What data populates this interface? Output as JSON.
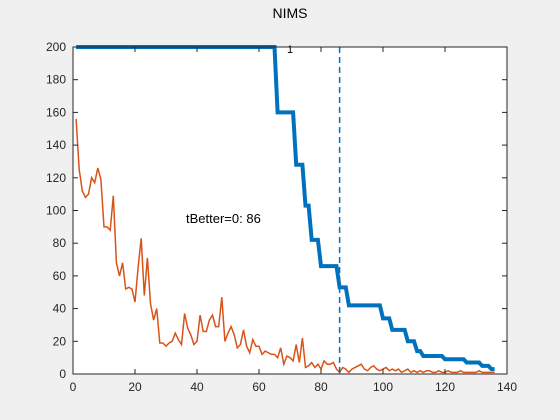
{
  "chart_data": {
    "type": "line",
    "title": "NIMS",
    "subtitle": "1",
    "xlabel": "",
    "ylabel": "",
    "xlim": [
      0,
      140
    ],
    "ylim": [
      0,
      200
    ],
    "xticks": [
      "0",
      "20",
      "40",
      "60",
      "80",
      "100",
      "120",
      "140"
    ],
    "yticks": [
      "0",
      "20",
      "40",
      "60",
      "80",
      "100",
      "120",
      "140",
      "160",
      "180",
      "200"
    ],
    "grid": false,
    "legend": "none",
    "annotation": {
      "text": "tBetter=0: 86",
      "x": 49,
      "y": 99
    },
    "vline": {
      "x": 86,
      "style": "dashed",
      "color": "#0072BD"
    },
    "series": [
      {
        "color": "#0072BD",
        "style": "step",
        "line_width": "thick",
        "points": [
          [
            1,
            200
          ],
          [
            65,
            200
          ],
          [
            66,
            160
          ],
          [
            71,
            160
          ],
          [
            72,
            128
          ],
          [
            74,
            128
          ],
          [
            75,
            103
          ],
          [
            76,
            103
          ],
          [
            77,
            82
          ],
          [
            79,
            82
          ],
          [
            80,
            66
          ],
          [
            85,
            66
          ],
          [
            86,
            53
          ],
          [
            88,
            53
          ],
          [
            89,
            42
          ],
          [
            99,
            42
          ],
          [
            100,
            34
          ],
          [
            102,
            34
          ],
          [
            103,
            27
          ],
          [
            107,
            27
          ],
          [
            108,
            20
          ],
          [
            110,
            20
          ],
          [
            111,
            14
          ],
          [
            112,
            14
          ],
          [
            113,
            11
          ],
          [
            119,
            11
          ],
          [
            120,
            9
          ],
          [
            126,
            9
          ],
          [
            127,
            7
          ],
          [
            131,
            7
          ],
          [
            132,
            5
          ],
          [
            134,
            5
          ],
          [
            135,
            3
          ],
          [
            136,
            3
          ]
        ]
      },
      {
        "color": "#D95319",
        "style": "line",
        "line_width": "thin",
        "points": [
          [
            1,
            156
          ],
          [
            2,
            125
          ],
          [
            3,
            112
          ],
          [
            4,
            108
          ],
          [
            5,
            110
          ],
          [
            6,
            120
          ],
          [
            7,
            117
          ],
          [
            8,
            126
          ],
          [
            9,
            119
          ],
          [
            10,
            90
          ],
          [
            11,
            90
          ],
          [
            12,
            88
          ],
          [
            13,
            109
          ],
          [
            14,
            68
          ],
          [
            15,
            60
          ],
          [
            16,
            68
          ],
          [
            17,
            52
          ],
          [
            18,
            53
          ],
          [
            19,
            52
          ],
          [
            20,
            44
          ],
          [
            21,
            65
          ],
          [
            22,
            83
          ],
          [
            23,
            48
          ],
          [
            24,
            71
          ],
          [
            25,
            43
          ],
          [
            26,
            33
          ],
          [
            27,
            40
          ],
          [
            28,
            19
          ],
          [
            29,
            19
          ],
          [
            30,
            17
          ],
          [
            31,
            19
          ],
          [
            32,
            20
          ],
          [
            33,
            25
          ],
          [
            34,
            21
          ],
          [
            35,
            18
          ],
          [
            36,
            37
          ],
          [
            37,
            28
          ],
          [
            38,
            24
          ],
          [
            39,
            18
          ],
          [
            40,
            20
          ],
          [
            41,
            36
          ],
          [
            42,
            26
          ],
          [
            43,
            26
          ],
          [
            44,
            33
          ],
          [
            45,
            36
          ],
          [
            46,
            29
          ],
          [
            47,
            29
          ],
          [
            48,
            47
          ],
          [
            49,
            20
          ],
          [
            50,
            25
          ],
          [
            51,
            29
          ],
          [
            52,
            24
          ],
          [
            53,
            16
          ],
          [
            54,
            18
          ],
          [
            55,
            27
          ],
          [
            56,
            17
          ],
          [
            57,
            13
          ],
          [
            58,
            21
          ],
          [
            59,
            17
          ],
          [
            60,
            17
          ],
          [
            61,
            12
          ],
          [
            62,
            14
          ],
          [
            63,
            13
          ],
          [
            64,
            12
          ],
          [
            65,
            12
          ],
          [
            66,
            10
          ],
          [
            67,
            16
          ],
          [
            68,
            6
          ],
          [
            69,
            11
          ],
          [
            70,
            10
          ],
          [
            71,
            8
          ],
          [
            72,
            18
          ],
          [
            73,
            7
          ],
          [
            74,
            22
          ],
          [
            75,
            4
          ],
          [
            76,
            5
          ],
          [
            77,
            7
          ],
          [
            78,
            4
          ],
          [
            79,
            6
          ],
          [
            80,
            3
          ],
          [
            81,
            8
          ],
          [
            82,
            6
          ],
          [
            83,
            6
          ],
          [
            84,
            7
          ],
          [
            85,
            3
          ],
          [
            86,
            1
          ],
          [
            87,
            4
          ],
          [
            88,
            3
          ],
          [
            89,
            1
          ],
          [
            90,
            3
          ],
          [
            91,
            4
          ],
          [
            92,
            5
          ],
          [
            93,
            6
          ],
          [
            94,
            3
          ],
          [
            95,
            2
          ],
          [
            96,
            4
          ],
          [
            97,
            5
          ],
          [
            98,
            3
          ],
          [
            99,
            2
          ],
          [
            100,
            3
          ],
          [
            101,
            4
          ],
          [
            102,
            2
          ],
          [
            103,
            3
          ],
          [
            104,
            2
          ],
          [
            105,
            3
          ],
          [
            106,
            1
          ],
          [
            107,
            2
          ],
          [
            108,
            3
          ],
          [
            109,
            1
          ],
          [
            110,
            2
          ],
          [
            111,
            1
          ],
          [
            112,
            2
          ],
          [
            113,
            1
          ],
          [
            114,
            2
          ],
          [
            115,
            2
          ],
          [
            116,
            1
          ],
          [
            117,
            1
          ],
          [
            118,
            2
          ],
          [
            119,
            1
          ],
          [
            120,
            1
          ],
          [
            121,
            2
          ],
          [
            122,
            1
          ],
          [
            123,
            1
          ],
          [
            124,
            1
          ],
          [
            125,
            2
          ],
          [
            126,
            1
          ],
          [
            127,
            1
          ],
          [
            128,
            1
          ],
          [
            129,
            1
          ],
          [
            130,
            1
          ],
          [
            131,
            2
          ],
          [
            132,
            1
          ],
          [
            133,
            1
          ],
          [
            134,
            1
          ],
          [
            135,
            1
          ],
          [
            136,
            1
          ]
        ]
      }
    ]
  }
}
